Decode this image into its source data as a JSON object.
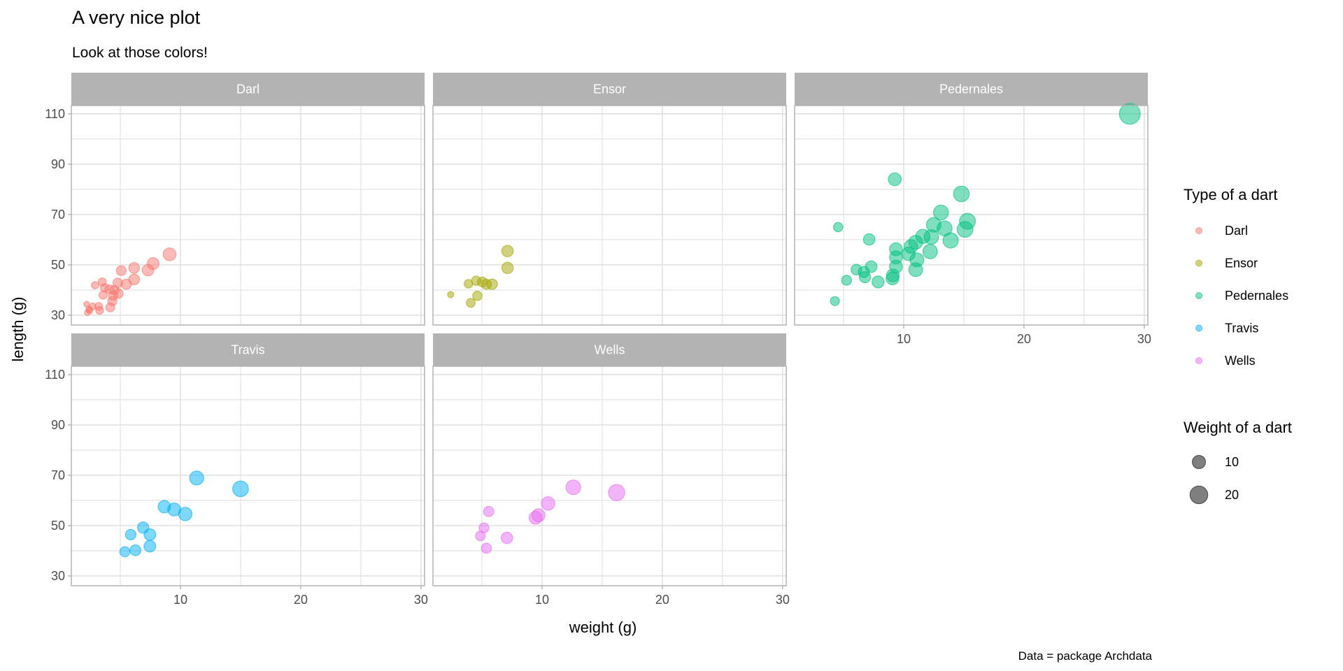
{
  "chart_data": {
    "type": "scatter",
    "title": "A very nice plot",
    "subtitle": "Look at those colors!",
    "xlabel": "weight (g)",
    "ylabel": "length (g)",
    "caption": "Data = package Archdata",
    "xlim": [
      0.93,
      30.3
    ],
    "ylim": [
      26.1,
      113.3
    ],
    "x_ticks": [
      10,
      20,
      30
    ],
    "y_ticks": [
      30,
      50,
      70,
      90,
      110
    ],
    "grid": true,
    "size_mapped_to": "weight",
    "legend": {
      "placement": "right",
      "color_title": "Type of a dart",
      "size_title": "Weight of a dart",
      "size_entries": [
        10,
        20
      ]
    },
    "facets": [
      {
        "name": "Darl",
        "color": "#F8766D",
        "points": [
          [
            9.1,
            54.2
          ],
          [
            7.73,
            50.5
          ],
          [
            7.3,
            47.9
          ],
          [
            6.15,
            48.8
          ],
          [
            5.08,
            47.7
          ],
          [
            6.15,
            44.2
          ],
          [
            5.5,
            42.3
          ],
          [
            4.79,
            42.8
          ],
          [
            2.9,
            41.9
          ],
          [
            3.5,
            43.2
          ],
          [
            3.7,
            40.9
          ],
          [
            4.1,
            40.3
          ],
          [
            4.5,
            40.0
          ],
          [
            4.84,
            38.6
          ],
          [
            3.57,
            38.0
          ],
          [
            4.4,
            37.7
          ],
          [
            4.34,
            35.6
          ],
          [
            4.17,
            33.1
          ],
          [
            3.2,
            33.5
          ],
          [
            3.28,
            31.9
          ],
          [
            2.7,
            33.5
          ],
          [
            2.46,
            31.9
          ],
          [
            2.2,
            34.4
          ],
          [
            2.27,
            31.0
          ],
          [
            2.4,
            32.4
          ]
        ]
      },
      {
        "name": "Ensor",
        "color": "#A3A500",
        "points": [
          [
            7.13,
            55.5
          ],
          [
            7.13,
            48.8
          ],
          [
            3.88,
            42.5
          ],
          [
            4.52,
            43.7
          ],
          [
            5.04,
            43.2
          ],
          [
            5.37,
            42.3
          ],
          [
            5.85,
            42.3
          ],
          [
            4.62,
            37.7
          ],
          [
            4.07,
            34.9
          ],
          [
            2.4,
            38.2
          ]
        ]
      },
      {
        "name": "Pedernales",
        "color": "#00BF7D",
        "points": [
          [
            28.8,
            110.0
          ],
          [
            9.26,
            84.0
          ],
          [
            14.8,
            78.2
          ],
          [
            13.1,
            70.8
          ],
          [
            15.3,
            67.3
          ],
          [
            15.1,
            64.1
          ],
          [
            12.5,
            65.9
          ],
          [
            13.4,
            64.5
          ],
          [
            12.3,
            61.1
          ],
          [
            11.6,
            61.3
          ],
          [
            11.0,
            59.0
          ],
          [
            13.9,
            59.7
          ],
          [
            10.6,
            57.3
          ],
          [
            12.2,
            55.3
          ],
          [
            9.36,
            56.2
          ],
          [
            10.4,
            54.4
          ],
          [
            11.1,
            52.0
          ],
          [
            9.36,
            53.0
          ],
          [
            9.36,
            49.3
          ],
          [
            11.0,
            48.1
          ],
          [
            9.1,
            45.8
          ],
          [
            9.07,
            44.6
          ],
          [
            7.3,
            49.3
          ],
          [
            6.07,
            48.1
          ],
          [
            6.69,
            47.2
          ],
          [
            6.78,
            45.1
          ],
          [
            7.87,
            43.2
          ],
          [
            5.25,
            43.9
          ],
          [
            7.13,
            60.1
          ],
          [
            4.55,
            65.0
          ],
          [
            4.28,
            35.6
          ]
        ]
      },
      {
        "name": "Travis",
        "color": "#00B0F6",
        "points": [
          [
            11.35,
            68.9
          ],
          [
            15.0,
            64.6
          ],
          [
            8.66,
            57.5
          ],
          [
            9.48,
            56.4
          ],
          [
            10.4,
            54.6
          ],
          [
            6.9,
            49.2
          ],
          [
            5.87,
            46.4
          ],
          [
            7.46,
            46.4
          ],
          [
            7.46,
            41.8
          ],
          [
            6.26,
            40.2
          ],
          [
            5.38,
            39.6
          ]
        ]
      },
      {
        "name": "Wells",
        "color": "#E76BF3",
        "points": [
          [
            16.2,
            63.1
          ],
          [
            12.6,
            65.2
          ],
          [
            10.5,
            58.8
          ],
          [
            9.7,
            54.1
          ],
          [
            9.46,
            53.1
          ],
          [
            5.56,
            55.6
          ],
          [
            5.17,
            49.1
          ],
          [
            4.87,
            45.9
          ],
          [
            7.08,
            45.1
          ],
          [
            5.37,
            41.0
          ]
        ]
      }
    ]
  }
}
